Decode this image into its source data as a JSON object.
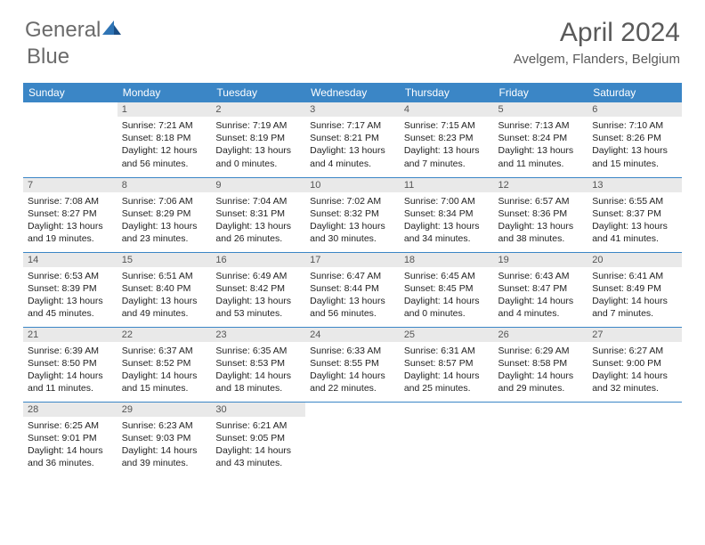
{
  "logo": {
    "text1": "General",
    "text2": "Blue"
  },
  "title": "April 2024",
  "location": "Avelgem, Flanders, Belgium",
  "colors": {
    "header_bg": "#3b86c6",
    "header_text": "#ffffff",
    "daynum_bg": "#e9e9e9",
    "border": "#3b86c6",
    "logo_gray": "#6b6b6b",
    "logo_blue": "#2f74b5"
  },
  "weekdays": [
    "Sunday",
    "Monday",
    "Tuesday",
    "Wednesday",
    "Thursday",
    "Friday",
    "Saturday"
  ],
  "weeks": [
    [
      null,
      {
        "n": "1",
        "sr": "7:21 AM",
        "ss": "8:18 PM",
        "dl": "12 hours and 56 minutes."
      },
      {
        "n": "2",
        "sr": "7:19 AM",
        "ss": "8:19 PM",
        "dl": "13 hours and 0 minutes."
      },
      {
        "n": "3",
        "sr": "7:17 AM",
        "ss": "8:21 PM",
        "dl": "13 hours and 4 minutes."
      },
      {
        "n": "4",
        "sr": "7:15 AM",
        "ss": "8:23 PM",
        "dl": "13 hours and 7 minutes."
      },
      {
        "n": "5",
        "sr": "7:13 AM",
        "ss": "8:24 PM",
        "dl": "13 hours and 11 minutes."
      },
      {
        "n": "6",
        "sr": "7:10 AM",
        "ss": "8:26 PM",
        "dl": "13 hours and 15 minutes."
      }
    ],
    [
      {
        "n": "7",
        "sr": "7:08 AM",
        "ss": "8:27 PM",
        "dl": "13 hours and 19 minutes."
      },
      {
        "n": "8",
        "sr": "7:06 AM",
        "ss": "8:29 PM",
        "dl": "13 hours and 23 minutes."
      },
      {
        "n": "9",
        "sr": "7:04 AM",
        "ss": "8:31 PM",
        "dl": "13 hours and 26 minutes."
      },
      {
        "n": "10",
        "sr": "7:02 AM",
        "ss": "8:32 PM",
        "dl": "13 hours and 30 minutes."
      },
      {
        "n": "11",
        "sr": "7:00 AM",
        "ss": "8:34 PM",
        "dl": "13 hours and 34 minutes."
      },
      {
        "n": "12",
        "sr": "6:57 AM",
        "ss": "8:36 PM",
        "dl": "13 hours and 38 minutes."
      },
      {
        "n": "13",
        "sr": "6:55 AM",
        "ss": "8:37 PM",
        "dl": "13 hours and 41 minutes."
      }
    ],
    [
      {
        "n": "14",
        "sr": "6:53 AM",
        "ss": "8:39 PM",
        "dl": "13 hours and 45 minutes."
      },
      {
        "n": "15",
        "sr": "6:51 AM",
        "ss": "8:40 PM",
        "dl": "13 hours and 49 minutes."
      },
      {
        "n": "16",
        "sr": "6:49 AM",
        "ss": "8:42 PM",
        "dl": "13 hours and 53 minutes."
      },
      {
        "n": "17",
        "sr": "6:47 AM",
        "ss": "8:44 PM",
        "dl": "13 hours and 56 minutes."
      },
      {
        "n": "18",
        "sr": "6:45 AM",
        "ss": "8:45 PM",
        "dl": "14 hours and 0 minutes."
      },
      {
        "n": "19",
        "sr": "6:43 AM",
        "ss": "8:47 PM",
        "dl": "14 hours and 4 minutes."
      },
      {
        "n": "20",
        "sr": "6:41 AM",
        "ss": "8:49 PM",
        "dl": "14 hours and 7 minutes."
      }
    ],
    [
      {
        "n": "21",
        "sr": "6:39 AM",
        "ss": "8:50 PM",
        "dl": "14 hours and 11 minutes."
      },
      {
        "n": "22",
        "sr": "6:37 AM",
        "ss": "8:52 PM",
        "dl": "14 hours and 15 minutes."
      },
      {
        "n": "23",
        "sr": "6:35 AM",
        "ss": "8:53 PM",
        "dl": "14 hours and 18 minutes."
      },
      {
        "n": "24",
        "sr": "6:33 AM",
        "ss": "8:55 PM",
        "dl": "14 hours and 22 minutes."
      },
      {
        "n": "25",
        "sr": "6:31 AM",
        "ss": "8:57 PM",
        "dl": "14 hours and 25 minutes."
      },
      {
        "n": "26",
        "sr": "6:29 AM",
        "ss": "8:58 PM",
        "dl": "14 hours and 29 minutes."
      },
      {
        "n": "27",
        "sr": "6:27 AM",
        "ss": "9:00 PM",
        "dl": "14 hours and 32 minutes."
      }
    ],
    [
      {
        "n": "28",
        "sr": "6:25 AM",
        "ss": "9:01 PM",
        "dl": "14 hours and 36 minutes."
      },
      {
        "n": "29",
        "sr": "6:23 AM",
        "ss": "9:03 PM",
        "dl": "14 hours and 39 minutes."
      },
      {
        "n": "30",
        "sr": "6:21 AM",
        "ss": "9:05 PM",
        "dl": "14 hours and 43 minutes."
      },
      null,
      null,
      null,
      null
    ]
  ],
  "labels": {
    "sunrise": "Sunrise: ",
    "sunset": "Sunset: ",
    "daylight": "Daylight: "
  }
}
